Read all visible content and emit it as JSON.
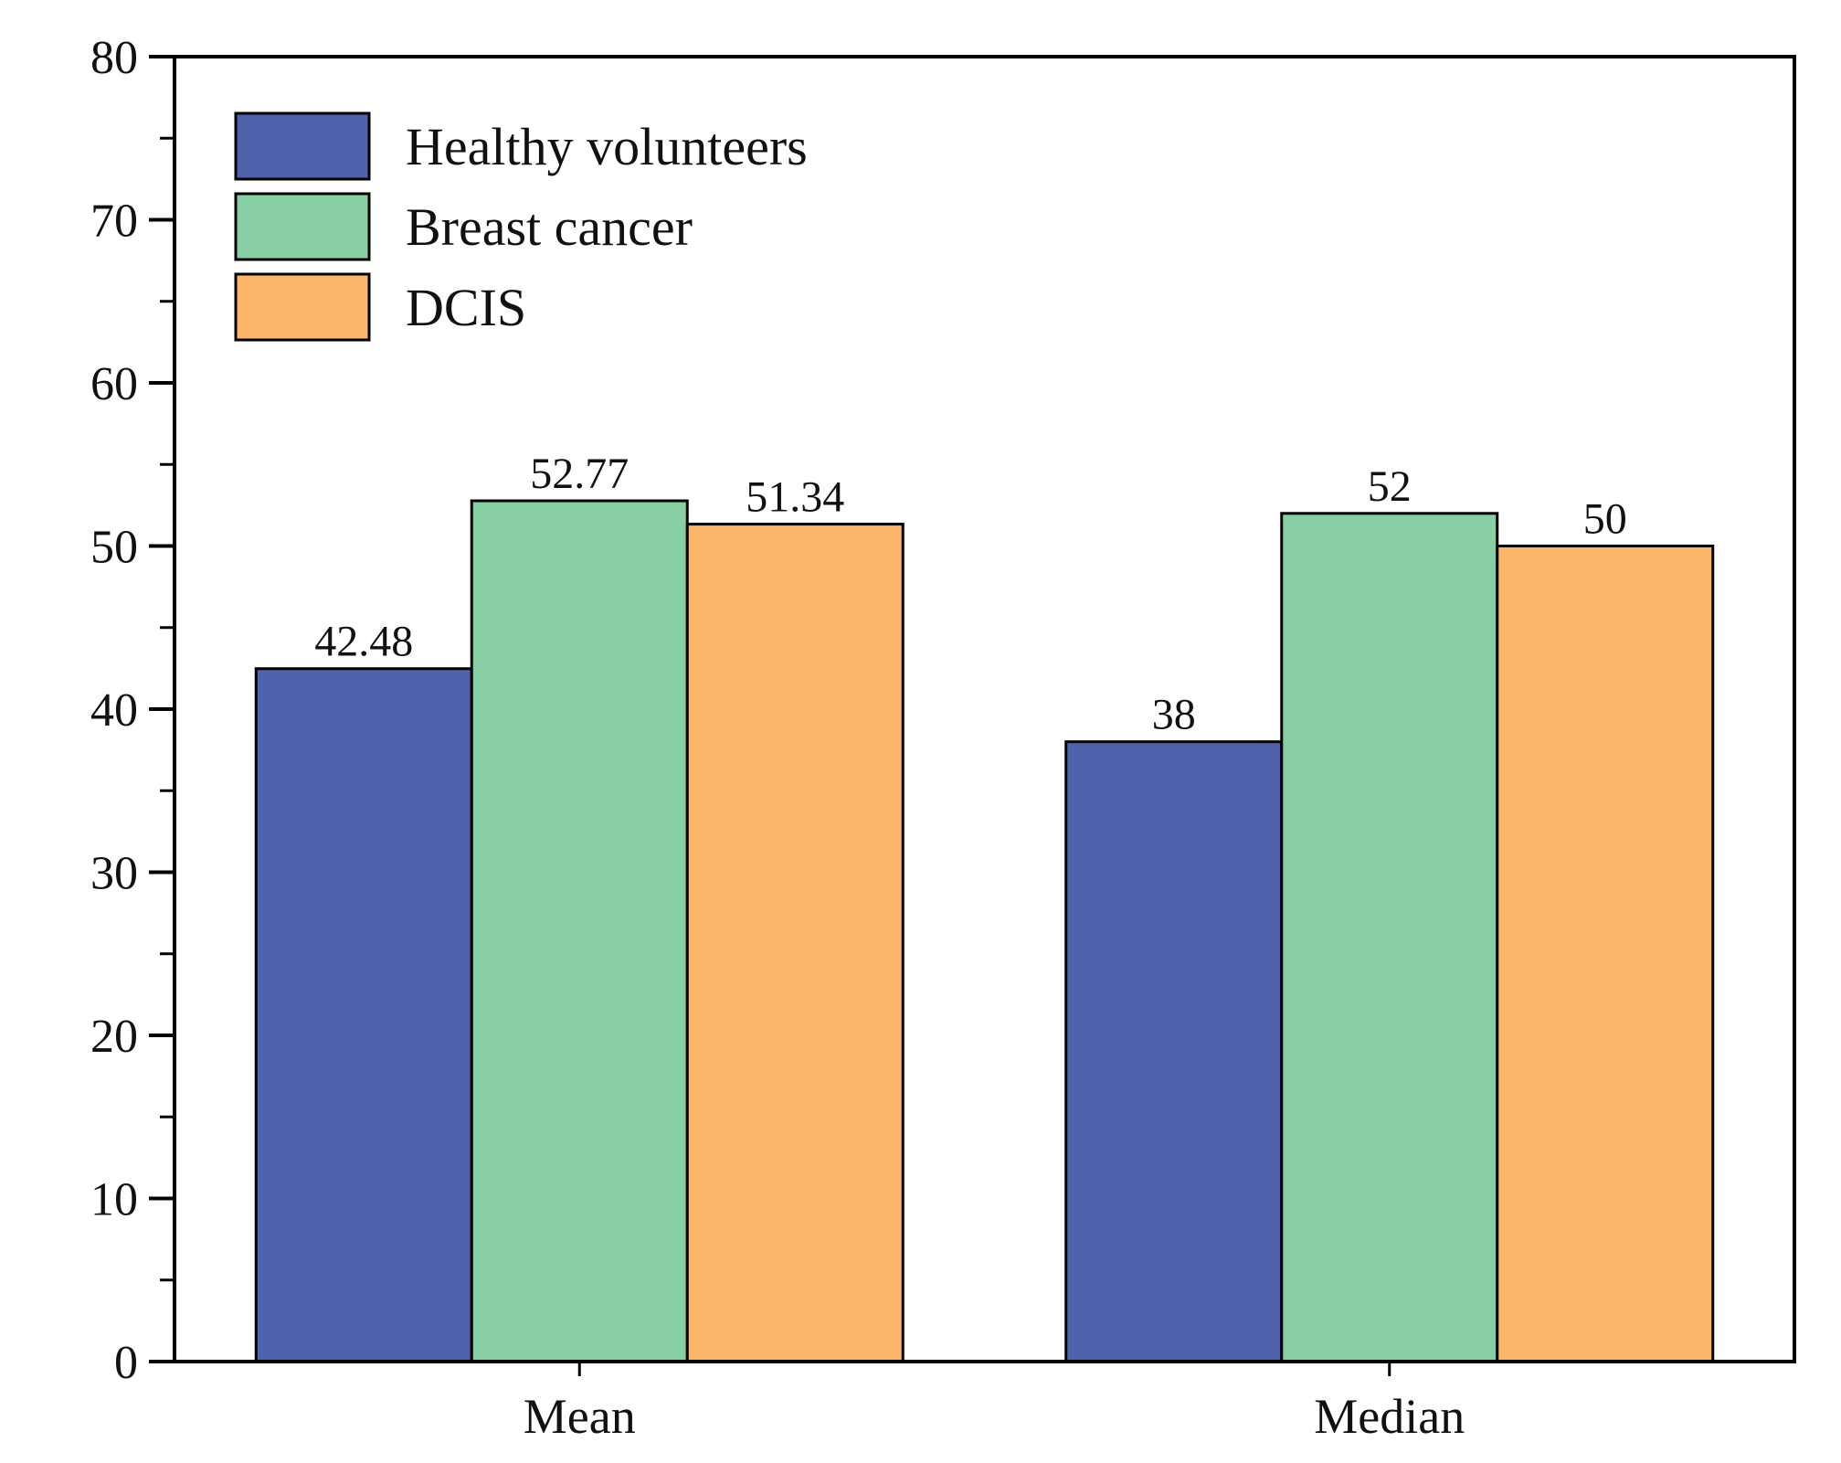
{
  "chart_data": {
    "type": "bar",
    "title": "",
    "xlabel": "",
    "ylabel": "",
    "categories": [
      "Mean",
      "Median"
    ],
    "series": [
      {
        "name": "Healthy volunteers",
        "color": "#4f62ab",
        "values": [
          42.48,
          38
        ],
        "labels": [
          "42.48",
          "38"
        ]
      },
      {
        "name": "Breast cancer",
        "color": "#88d0a3",
        "values": [
          52.77,
          52
        ],
        "labels": [
          "52.77",
          "52"
        ]
      },
      {
        "name": "DCIS",
        "color": "#fbb66a",
        "values": [
          51.34,
          50
        ],
        "labels": [
          "51.34",
          "50"
        ]
      }
    ],
    "ylim": [
      0,
      80
    ],
    "yticks": [
      0,
      10,
      20,
      30,
      40,
      50,
      60,
      70,
      80
    ],
    "ytick_labels": [
      "0",
      "10",
      "20",
      "30",
      "40",
      "50",
      "60",
      "70",
      "80"
    ],
    "grid": false,
    "legend_position": "top-left"
  }
}
